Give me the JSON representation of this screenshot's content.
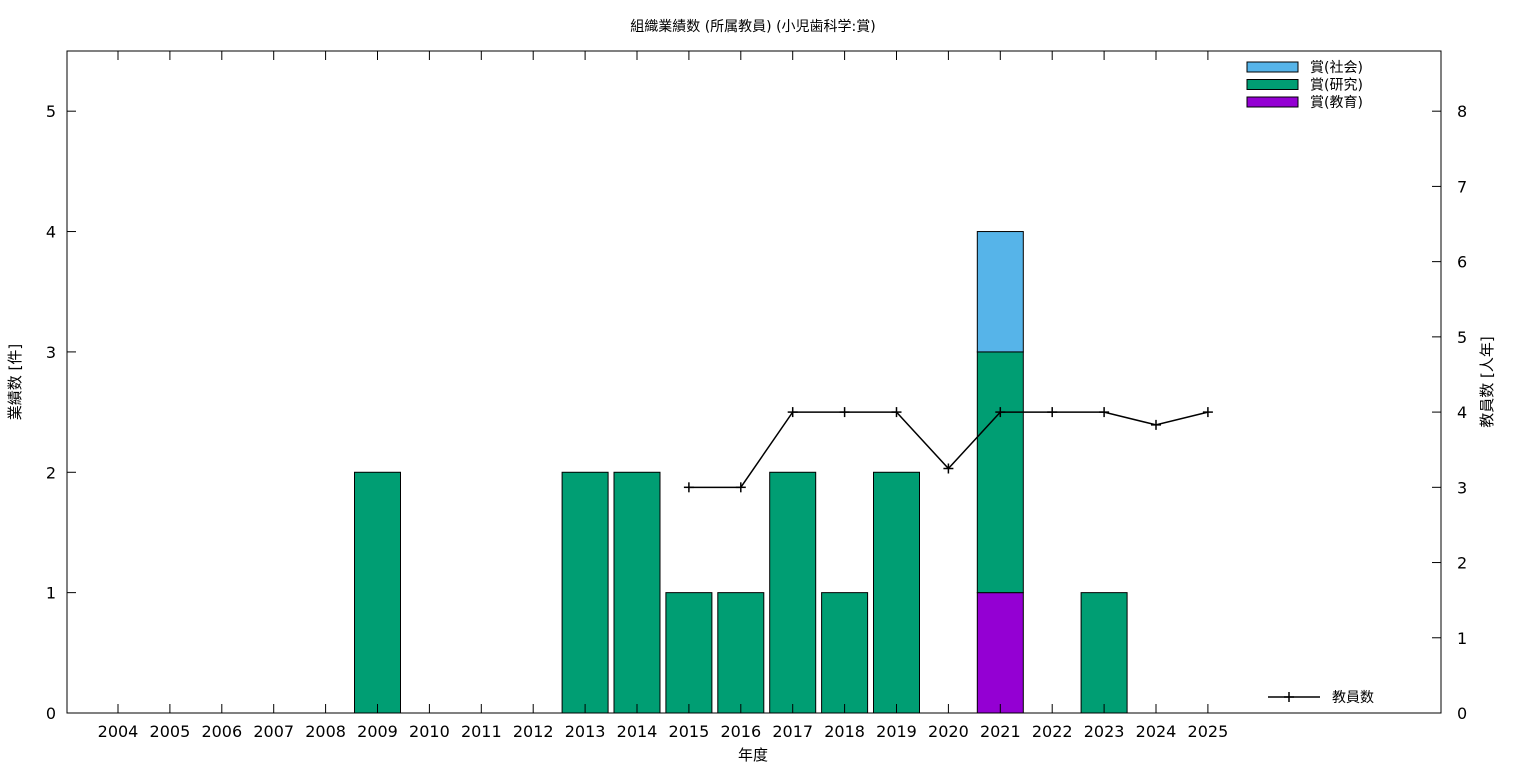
{
  "chart_data": {
    "type": "bar",
    "title": "組織業績数 (所属教員) (小児歯科学:賞)",
    "xlabel": "年度",
    "ylabel_left": "業績数 [件]",
    "ylabel_right": "教員数 [人年]",
    "categories": [
      "2004",
      "2005",
      "2006",
      "2007",
      "2008",
      "2009",
      "2010",
      "2011",
      "2012",
      "2013",
      "2014",
      "2015",
      "2016",
      "2017",
      "2018",
      "2019",
      "2020",
      "2021",
      "2022",
      "2023",
      "2024",
      "2025"
    ],
    "stacked": true,
    "ylim_left": [
      0,
      5.5
    ],
    "yticks_left": [
      "0",
      "1",
      "2",
      "3",
      "4",
      "5"
    ],
    "ylim_right": [
      0,
      8.8
    ],
    "yticks_right": [
      "0",
      "1",
      "2",
      "3",
      "4",
      "5",
      "6",
      "7",
      "8"
    ],
    "grid": false,
    "legend_position": "top-right",
    "series": [
      {
        "name": "賞(教育)",
        "color": "#9400d3",
        "values": [
          0,
          0,
          0,
          0,
          0,
          0,
          0,
          0,
          0,
          0,
          0,
          0,
          0,
          0,
          0,
          0,
          0,
          1,
          0,
          0,
          0,
          0
        ]
      },
      {
        "name": "賞(研究)",
        "color": "#009e73",
        "values": [
          0,
          0,
          0,
          0,
          0,
          2,
          0,
          0,
          0,
          2,
          2,
          1,
          1,
          2,
          1,
          2,
          0,
          2,
          0,
          1,
          0,
          0
        ]
      },
      {
        "name": "賞(社会)",
        "color": "#56b4e9",
        "values": [
          0,
          0,
          0,
          0,
          0,
          0,
          0,
          0,
          0,
          0,
          0,
          0,
          0,
          0,
          0,
          0,
          0,
          1,
          0,
          0,
          0,
          0
        ]
      }
    ],
    "line_series": {
      "name": "教員数",
      "color": "#000000",
      "axis": "right",
      "x": [
        "2015",
        "2016",
        "2017",
        "2018",
        "2019",
        "2020",
        "2021",
        "2022",
        "2023",
        "2024",
        "2025"
      ],
      "values": [
        3,
        3,
        4,
        4,
        4,
        3.25,
        4,
        4,
        4,
        3.83,
        4
      ]
    },
    "legend_order": [
      "賞(社会)",
      "賞(研究)",
      "賞(教育)"
    ]
  }
}
